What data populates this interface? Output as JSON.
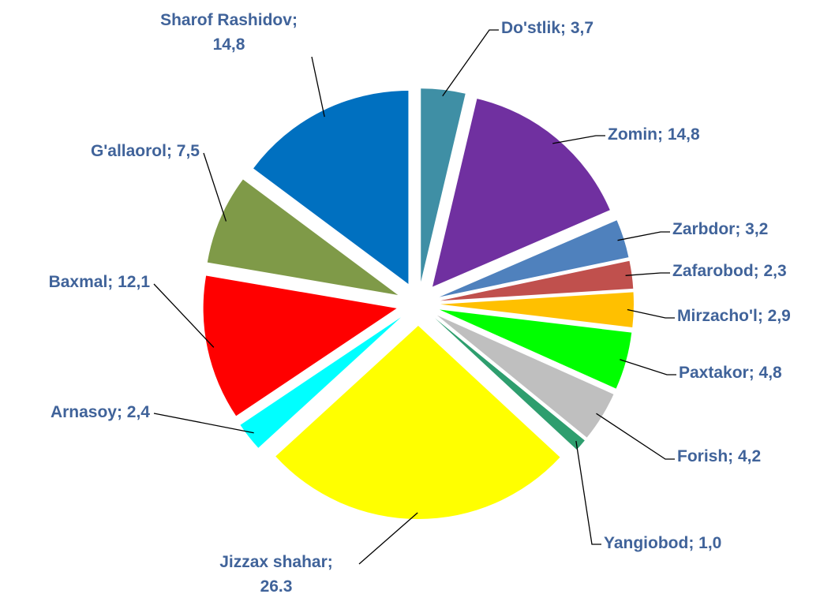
{
  "chart_data": {
    "type": "pie",
    "categories": [
      "Do'stlik",
      "Zomin",
      "Zarbdor",
      "Zafarobod",
      "Mirzacho'l",
      "Paxtakor",
      "Forish",
      "Yangiobod",
      "Jizzax shahar",
      "Arnasoy",
      "Baxmal",
      "G'allaorol",
      "Sharof Rashidov"
    ],
    "values": [
      3.7,
      14.8,
      3.2,
      2.3,
      2.9,
      4.8,
      4.2,
      1.0,
      26.3,
      2.4,
      12.1,
      7.5,
      14.8
    ],
    "value_labels": [
      "3,7",
      "14,8",
      "3,2",
      "2,3",
      "2,9",
      "4,8",
      "4,2",
      "1,0",
      "26.3",
      "2,4",
      "12,1",
      "7,5",
      "14,8"
    ],
    "label_separator": "; ",
    "colors": [
      "#3f8fa5",
      "#7030a0",
      "#4f81bd",
      "#c0504d",
      "#ffc000",
      "#00ff00",
      "#bfbfbf",
      "#2e9e6e",
      "#ffff00",
      "#00ffff",
      "#ff0000",
      "#7f9a48",
      "#0070c0"
    ]
  }
}
